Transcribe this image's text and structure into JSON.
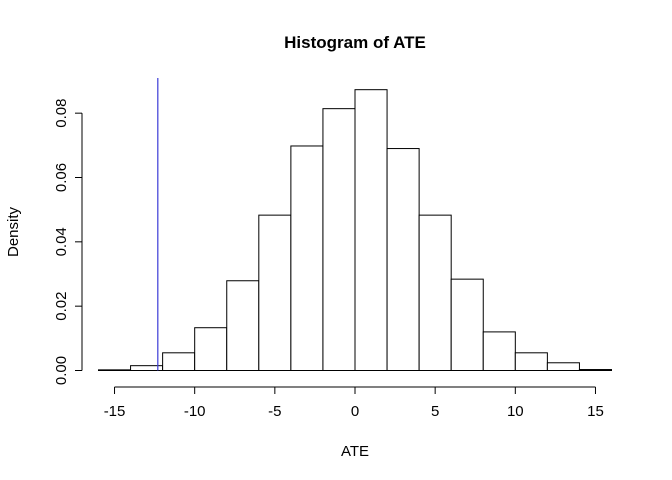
{
  "chart_data": {
    "type": "bar",
    "title": "Histogram of ATE",
    "xlabel": "ATE",
    "ylabel": "Density",
    "xlim": [
      -16,
      16
    ],
    "ylim": [
      0,
      0.09
    ],
    "bin_edges": [
      -16,
      -14,
      -12,
      -10,
      -8,
      -6,
      -4,
      -2,
      0,
      2,
      4,
      6,
      8,
      10,
      12,
      14,
      16
    ],
    "values": [
      0.0002,
      0.0015,
      0.0055,
      0.0133,
      0.0279,
      0.0483,
      0.0698,
      0.0814,
      0.0873,
      0.069,
      0.0483,
      0.0284,
      0.012,
      0.0055,
      0.0024,
      0.0003
    ],
    "x_ticks": [
      -15,
      -10,
      -5,
      0,
      5,
      10,
      15
    ],
    "x_tick_labels": [
      "-15",
      "-10",
      "-5",
      "0",
      "5",
      "10",
      "15"
    ],
    "y_ticks": [
      0,
      0.02,
      0.04,
      0.06,
      0.08
    ],
    "y_tick_labels": [
      "0.00",
      "0.02",
      "0.04",
      "0.06",
      "0.08"
    ],
    "reference_line": {
      "x": -12.3,
      "color": "#3a3ad6"
    },
    "grid": false,
    "legend": "none"
  }
}
